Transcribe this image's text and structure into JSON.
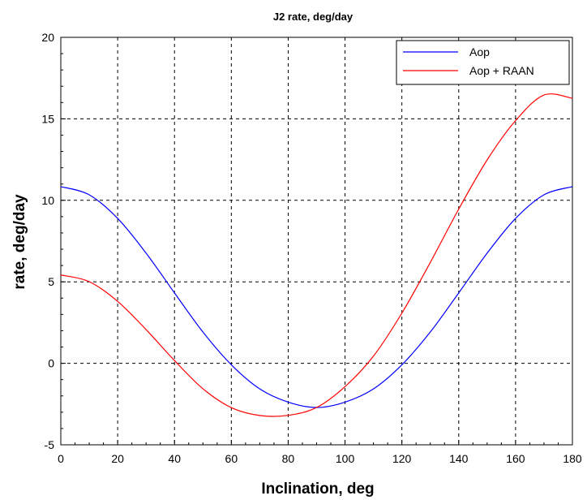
{
  "chart_data": {
    "type": "line",
    "title": "J2 rate, deg/day",
    "xlabel": "Inclination, deg",
    "ylabel": "rate, deg/day",
    "xlim": [
      0,
      180
    ],
    "ylim": [
      -5,
      20
    ],
    "x_ticks": [
      0,
      20,
      40,
      60,
      80,
      100,
      120,
      140,
      160,
      180
    ],
    "y_ticks": [
      -5,
      0,
      5,
      10,
      15,
      20
    ],
    "grid": true,
    "legend_position": "top-right",
    "x": [
      0,
      10,
      20,
      30,
      40,
      50,
      60,
      70,
      80,
      90,
      100,
      110,
      120,
      130,
      140,
      150,
      160,
      170,
      180
    ],
    "series": [
      {
        "name": "Aop",
        "color": "#0000ff",
        "values": [
          10.84,
          10.34,
          8.89,
          6.76,
          4.32,
          1.92,
          -0.09,
          -1.57,
          -2.38,
          -2.71,
          -2.38,
          -1.57,
          -0.09,
          1.92,
          4.32,
          6.76,
          8.89,
          10.34,
          10.84
        ]
      },
      {
        "name": "Aop + RAAN",
        "color": "#ff0000",
        "values": [
          5.42,
          5.01,
          3.8,
          2.07,
          0.17,
          -1.56,
          -2.72,
          -3.2,
          -3.19,
          -2.71,
          -1.43,
          0.44,
          3.08,
          6.19,
          9.46,
          12.48,
          14.89,
          16.46,
          16.26
        ]
      }
    ]
  }
}
